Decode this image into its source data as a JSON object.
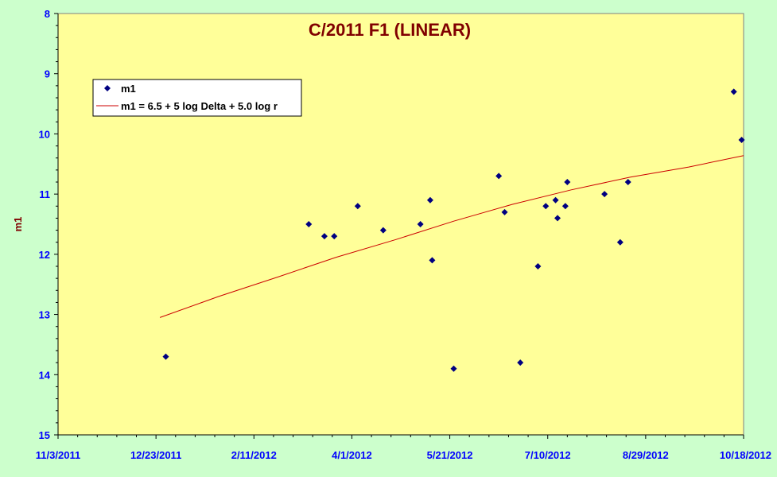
{
  "chart_data": {
    "type": "scatter",
    "title": "C/2011 F1 (LINEAR)",
    "xlabel": "",
    "ylabel": "m1",
    "x_axis": {
      "type": "date",
      "range": [
        "2011-11-03",
        "2012-10-18"
      ],
      "tick_labels": [
        "11/3/2011",
        "12/23/2011",
        "2/11/2012",
        "4/1/2012",
        "5/21/2012",
        "7/10/2012",
        "8/29/2012",
        "10/18/2012"
      ]
    },
    "y_axis": {
      "range": [
        8,
        15
      ],
      "inverted": true,
      "tick_labels": [
        "8",
        "9",
        "10",
        "11",
        "12",
        "13",
        "14",
        "15"
      ]
    },
    "grid": false,
    "legend_placement": "top-left",
    "colors": {
      "plot_background": "#ffff99",
      "outer_background": "#ccffcc",
      "points": "#000080",
      "fit_line": "#cc0000",
      "title": "#800000",
      "tick_labels": "#0000ff"
    },
    "series": [
      {
        "name": "m1",
        "kind": "points",
        "points": [
          {
            "x": "2011-12-28",
            "y": 13.7
          },
          {
            "x": "2012-03-10",
            "y": 11.5
          },
          {
            "x": "2012-03-18",
            "y": 11.7
          },
          {
            "x": "2012-03-23",
            "y": 11.7
          },
          {
            "x": "2012-04-04",
            "y": 11.2
          },
          {
            "x": "2012-04-17",
            "y": 11.6
          },
          {
            "x": "2012-05-06",
            "y": 11.5
          },
          {
            "x": "2012-05-11",
            "y": 11.1
          },
          {
            "x": "2012-05-12",
            "y": 12.1
          },
          {
            "x": "2012-05-23",
            "y": 13.9
          },
          {
            "x": "2012-06-15",
            "y": 10.7
          },
          {
            "x": "2012-06-18",
            "y": 11.3
          },
          {
            "x": "2012-06-26",
            "y": 13.8
          },
          {
            "x": "2012-07-05",
            "y": 12.2
          },
          {
            "x": "2012-07-09",
            "y": 11.2
          },
          {
            "x": "2012-07-14",
            "y": 11.1
          },
          {
            "x": "2012-07-15",
            "y": 11.4
          },
          {
            "x": "2012-07-19",
            "y": 11.2
          },
          {
            "x": "2012-07-20",
            "y": 10.8
          },
          {
            "x": "2012-08-08",
            "y": 11.0
          },
          {
            "x": "2012-08-16",
            "y": 11.8
          },
          {
            "x": "2012-08-20",
            "y": 10.8
          },
          {
            "x": "2012-10-13",
            "y": 9.3
          },
          {
            "x": "2012-10-17",
            "y": 10.1
          }
        ]
      },
      {
        "name": "m1 = 6.5 + 5 log Delta + 5.0  log r",
        "kind": "line",
        "points": [
          {
            "x": "2011-12-25",
            "y": 13.05
          },
          {
            "x": "2012-01-24",
            "y": 12.7
          },
          {
            "x": "2012-02-23",
            "y": 12.38
          },
          {
            "x": "2012-03-24",
            "y": 12.05
          },
          {
            "x": "2012-04-23",
            "y": 11.76
          },
          {
            "x": "2012-05-23",
            "y": 11.45
          },
          {
            "x": "2012-06-22",
            "y": 11.17
          },
          {
            "x": "2012-07-22",
            "y": 10.93
          },
          {
            "x": "2012-08-21",
            "y": 10.72
          },
          {
            "x": "2012-09-20",
            "y": 10.55
          },
          {
            "x": "2012-10-18",
            "y": 10.36
          }
        ]
      }
    ]
  }
}
